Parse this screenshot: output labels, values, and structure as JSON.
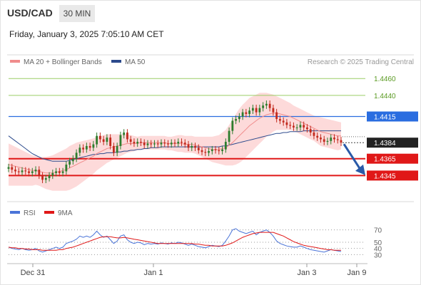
{
  "header": {
    "symbol": "USD/CAD",
    "timeframe": "30 MIN",
    "timestamp": "Friday, January 3, 2025 7:05:10 AM CET"
  },
  "legend": {
    "ma20": {
      "label": "MA 20 + Bollinger Bands",
      "color": "#f08c8c"
    },
    "ma50": {
      "label": "MA 50",
      "color": "#2c4a8c"
    },
    "credit": "Research © 2025 Trading Central"
  },
  "colors": {
    "bull": "#2e7d2e",
    "bear": "#c22a1e",
    "band": "#fdd3d3",
    "resistance": "#9acd66",
    "pivot": "#2a6de0",
    "support": "#e01818",
    "current": "#222222",
    "rsi": "#4a74d8",
    "rsi_ma": "#e01818"
  },
  "chart_data": [
    {
      "type": "candlestick",
      "title": "USD/CAD 30 MIN",
      "ylim": [
        1.432,
        1.4472
      ],
      "x_ticks": [
        "Dec 31",
        "Jan 1",
        "Jan 3",
        "Jan 9"
      ],
      "levels": [
        {
          "label": "1.4460",
          "value": 1.446,
          "kind": "resistance"
        },
        {
          "label": "1.4440",
          "value": 1.444,
          "kind": "resistance"
        },
        {
          "label": "1.4415",
          "value": 1.4415,
          "kind": "pivot"
        },
        {
          "label": "1.4384",
          "value": 1.4384,
          "kind": "current"
        },
        {
          "label": "1.4365",
          "value": 1.4365,
          "kind": "support"
        },
        {
          "label": "1.4345",
          "value": 1.4345,
          "kind": "support"
        }
      ],
      "close": [
        1.4355,
        1.4352,
        1.435,
        1.4349,
        1.4351,
        1.435,
        1.4348,
        1.435,
        1.4352,
        1.4345,
        1.434,
        1.4342,
        1.4345,
        1.4348,
        1.435,
        1.4348,
        1.435,
        1.4358,
        1.4362,
        1.4365,
        1.4372,
        1.4378,
        1.4376,
        1.438,
        1.4378,
        1.4382,
        1.4392,
        1.4388,
        1.4385,
        1.439,
        1.438,
        1.4372,
        1.438,
        1.4393,
        1.4396,
        1.4388,
        1.4385,
        1.4383,
        1.4385,
        1.4384,
        1.4381,
        1.4383,
        1.4382,
        1.4383,
        1.4382,
        1.4384,
        1.4383,
        1.4382,
        1.4384,
        1.4383,
        1.4385,
        1.4384,
        1.4382,
        1.4378,
        1.438,
        1.4378,
        1.4375,
        1.4373,
        1.4372,
        1.4374,
        1.4376,
        1.4375,
        1.4374,
        1.4376,
        1.4385,
        1.4398,
        1.441,
        1.4412,
        1.4415,
        1.442,
        1.4418,
        1.4422,
        1.4425,
        1.442,
        1.4425,
        1.4428,
        1.443,
        1.4425,
        1.442,
        1.4412,
        1.441,
        1.4408,
        1.4405,
        1.4404,
        1.4402,
        1.4402,
        1.4405,
        1.4402,
        1.44,
        1.4396,
        1.4392,
        1.439,
        1.4388,
        1.4385,
        1.4386,
        1.439,
        1.4388,
        1.4387,
        1.4384
      ],
      "ma20": [
        1.4358,
        1.4357,
        1.4356,
        1.4355,
        1.4354,
        1.4353,
        1.4352,
        1.4351,
        1.4351,
        1.435,
        1.4349,
        1.4348,
        1.4348,
        1.4348,
        1.4349,
        1.435,
        1.4351,
        1.4352,
        1.4354,
        1.4356,
        1.4358,
        1.436,
        1.4362,
        1.4364,
        1.4366,
        1.4368,
        1.4371,
        1.4373,
        1.4375,
        1.4377,
        1.4378,
        1.4379,
        1.438,
        1.4381,
        1.4382,
        1.4383,
        1.4383,
        1.4383,
        1.4383,
        1.4384,
        1.4384,
        1.4384,
        1.4384,
        1.4384,
        1.4384,
        1.4384,
        1.4384,
        1.4383,
        1.4383,
        1.4383,
        1.4383,
        1.4383,
        1.4382,
        1.4382,
        1.4382,
        1.4381,
        1.438,
        1.4379,
        1.4378,
        1.4377,
        1.4376,
        1.4376,
        1.4376,
        1.4377,
        1.4378,
        1.4381,
        1.4384,
        1.4388,
        1.4392,
        1.4396,
        1.44,
        1.4404,
        1.4407,
        1.441,
        1.4413,
        1.4415,
        1.4417,
        1.4418,
        1.4419,
        1.4419,
        1.4418,
        1.4417,
        1.4416,
        1.4415,
        1.4413,
        1.4411,
        1.4409,
        1.4407,
        1.4405,
        1.4403,
        1.4401,
        1.4399,
        1.4397,
        1.4396,
        1.4395,
        1.4394,
        1.4393,
        1.4392,
        1.4392
      ],
      "ma50": [
        1.4392,
        1.4389,
        1.4386,
        1.4383,
        1.438,
        1.4377,
        1.4374,
        1.4371,
        1.4369,
        1.4367,
        1.4365,
        1.4364,
        1.4363,
        1.4362,
        1.4362,
        1.4362,
        1.4362,
        1.4362,
        1.4363,
        1.4364,
        1.4365,
        1.4366,
        1.4367,
        1.4368,
        1.4369,
        1.437,
        1.437,
        1.4371,
        1.4371,
        1.4372,
        1.4372,
        1.4372,
        1.4373,
        1.4373,
        1.4374,
        1.4374,
        1.4375,
        1.4375,
        1.4376,
        1.4376,
        1.4377,
        1.4377,
        1.4378,
        1.4378,
        1.4378,
        1.4379,
        1.4379,
        1.4379,
        1.4379,
        1.4379,
        1.4379,
        1.4379,
        1.4379,
        1.4379,
        1.4379,
        1.4379,
        1.4379,
        1.4379,
        1.4379,
        1.4379,
        1.4379,
        1.4379,
        1.4379,
        1.438,
        1.438,
        1.4381,
        1.4382,
        1.4383,
        1.4384,
        1.4385,
        1.4386,
        1.4387,
        1.4388,
        1.4389,
        1.439,
        1.4391,
        1.4392,
        1.4393,
        1.4394,
        1.4395,
        1.4395,
        1.4396,
        1.4396,
        1.4397,
        1.4397,
        1.4397,
        1.4397,
        1.4398,
        1.4398,
        1.4398,
        1.4398,
        1.4398,
        1.4398,
        1.4398,
        1.4398,
        1.4398,
        1.4398,
        1.4398,
        1.4398
      ],
      "bb_width": [
        0.0025,
        0.0024,
        0.0023,
        0.0022,
        0.0021,
        0.002,
        0.0019,
        0.0018,
        0.0017,
        0.0017,
        0.0018,
        0.0019,
        0.002,
        0.0021,
        0.0022,
        0.0023,
        0.0024,
        0.0025,
        0.0026,
        0.0026,
        0.0026,
        0.0025,
        0.0024,
        0.0023,
        0.0022,
        0.0021,
        0.002,
        0.0019,
        0.0018,
        0.0017,
        0.0016,
        0.0015,
        0.0014,
        0.0013,
        0.0012,
        0.0011,
        0.001,
        0.0009,
        0.0008,
        0.0008,
        0.0008,
        0.0008,
        0.0008,
        0.0008,
        0.0008,
        0.0008,
        0.0008,
        0.0008,
        0.0008,
        0.0009,
        0.001,
        0.001,
        0.001,
        0.001,
        0.001,
        0.001,
        0.0011,
        0.0012,
        0.0013,
        0.0014,
        0.0015,
        0.0016,
        0.0017,
        0.0019,
        0.0021,
        0.0024,
        0.0027,
        0.003,
        0.0032,
        0.0033,
        0.0033,
        0.0033,
        0.0032,
        0.0031,
        0.003,
        0.0028,
        0.0026,
        0.0024,
        0.0022,
        0.002,
        0.0019,
        0.0018,
        0.0017,
        0.0016,
        0.0015,
        0.0015,
        0.0015,
        0.0015,
        0.0015,
        0.0015,
        0.0015,
        0.0016,
        0.0017,
        0.0017,
        0.0017,
        0.0017,
        0.0017,
        0.0017,
        0.0016
      ]
    },
    {
      "type": "line",
      "title": "RSI",
      "ylim": [
        20,
        80
      ],
      "y_ticks": [
        70,
        50,
        40,
        30
      ],
      "series": [
        {
          "name": "RSI",
          "values": [
            42,
            40,
            39,
            38,
            40,
            38,
            37,
            38,
            40,
            36,
            34,
            36,
            38,
            40,
            42,
            40,
            42,
            48,
            50,
            52,
            55,
            60,
            58,
            60,
            58,
            62,
            68,
            62,
            58,
            60,
            54,
            48,
            52,
            60,
            62,
            54,
            50,
            48,
            50,
            49,
            46,
            48,
            47,
            48,
            47,
            49,
            48,
            47,
            49,
            48,
            50,
            49,
            47,
            45,
            47,
            45,
            43,
            42,
            41,
            43,
            45,
            44,
            43,
            45,
            52,
            60,
            70,
            72,
            68,
            66,
            64,
            66,
            68,
            62,
            66,
            68,
            70,
            66,
            60,
            52,
            48,
            46,
            44,
            43,
            42,
            42,
            44,
            42,
            40,
            38,
            37,
            36,
            35,
            34,
            36,
            38,
            37,
            36,
            35
          ]
        },
        {
          "name": "9MA",
          "values": [
            42,
            41,
            41,
            40,
            40,
            39,
            39,
            38,
            38,
            38,
            37,
            37,
            37,
            37,
            37,
            38,
            38,
            40,
            41,
            42,
            44,
            46,
            48,
            50,
            52,
            54,
            56,
            58,
            59,
            59,
            59,
            58,
            57,
            57,
            58,
            57,
            56,
            55,
            54,
            53,
            52,
            51,
            50,
            49,
            48,
            48,
            48,
            48,
            48,
            48,
            48,
            48,
            48,
            48,
            48,
            47,
            47,
            46,
            45,
            45,
            44,
            44,
            44,
            44,
            45,
            47,
            49,
            52,
            55,
            58,
            60,
            62,
            64,
            65,
            66,
            66,
            66,
            66,
            66,
            64,
            62,
            60,
            57,
            54,
            51,
            49,
            47,
            45,
            44,
            43,
            42,
            41,
            40,
            39,
            38,
            38,
            37,
            37,
            37
          ]
        }
      ]
    }
  ]
}
